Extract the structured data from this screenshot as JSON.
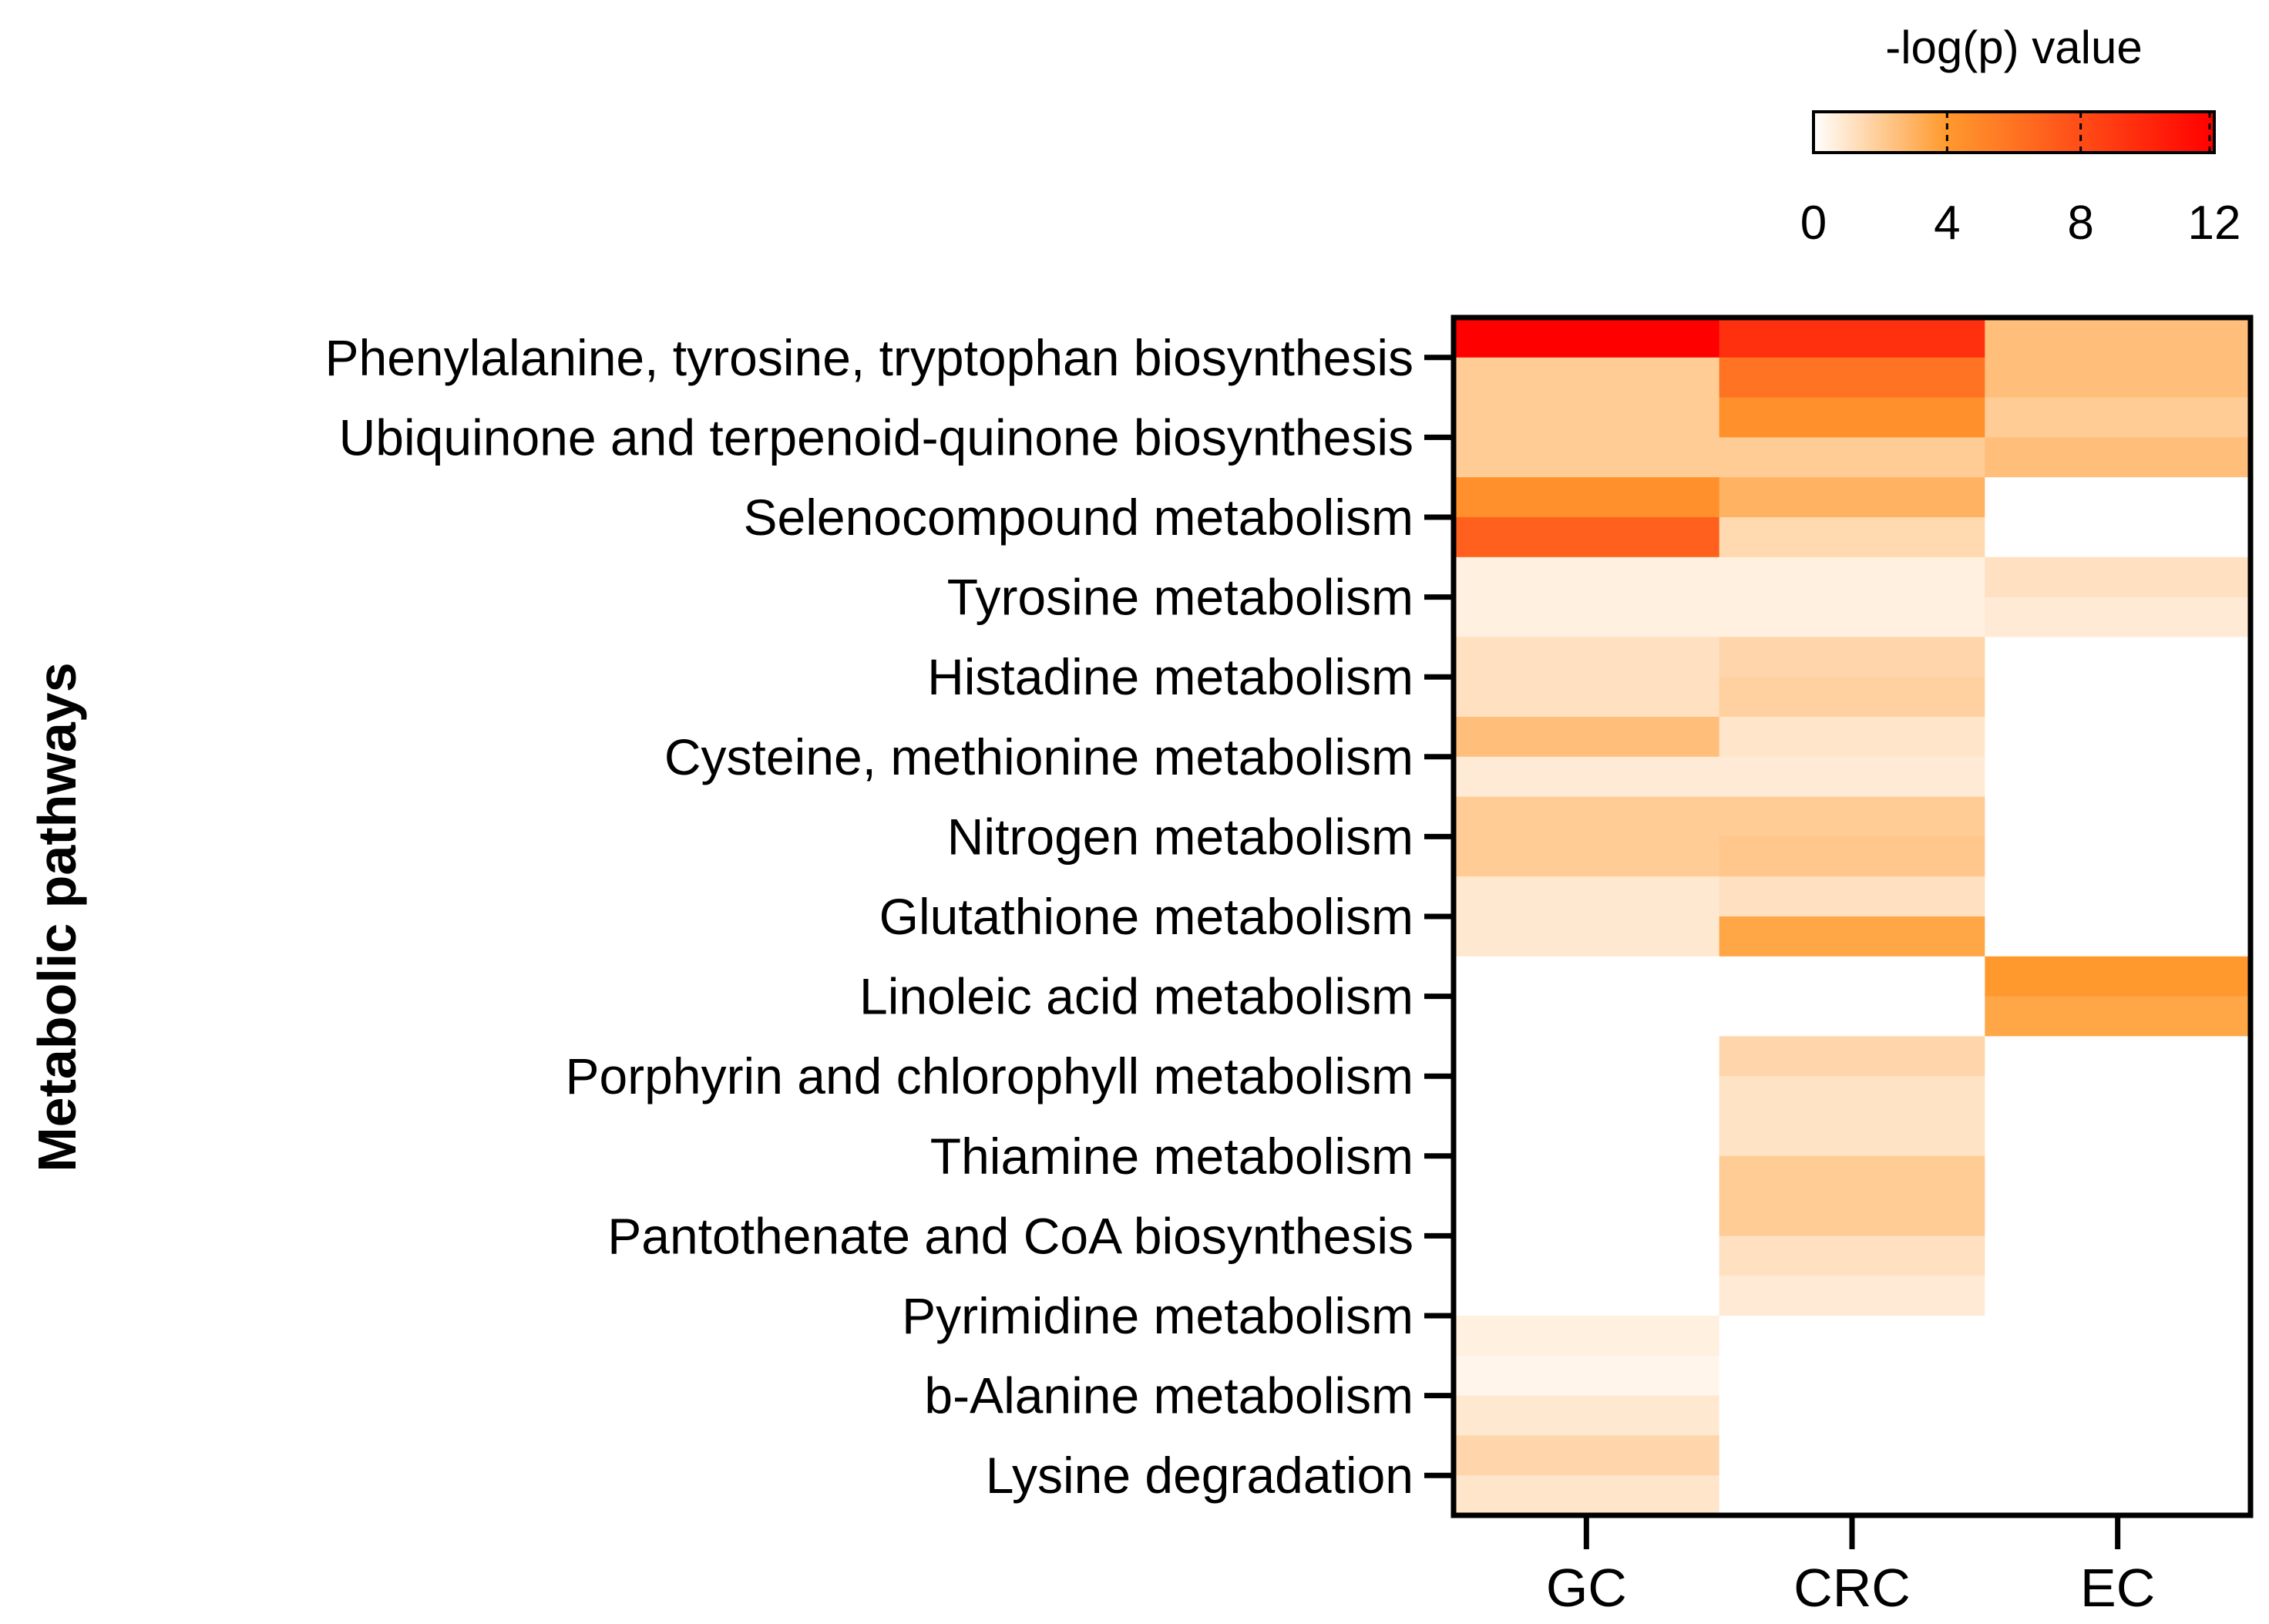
{
  "chart_data": {
    "type": "heatmap",
    "title": "",
    "ylabel": "Metabolic pathways",
    "xlabel": "",
    "columns": [
      "GC",
      "CRC",
      "EC"
    ],
    "row_labels": [
      "Phenylalanine, tyrosine, tryptophan biosynthesis",
      "Ubiquinone and terpenoid-quinone biosynthesis",
      "Selenocompound metabolism",
      "Tyrosine metabolism",
      "Histadine metabolism",
      "Cysteine, methionine metabolism",
      "Nitrogen metabolism",
      "Glutathione metabolism",
      "Linoleic acid metabolism",
      "Porphyrin and chlorophyll metabolism",
      "Thiamine metabolism",
      "Pantothenate and CoA biosynthesis",
      "Pyrimidine metabolism",
      "b-Alanine metabolism",
      "Lysine degradation"
    ],
    "sub_rows": 30,
    "values": [
      [
        12.0,
        9.5,
        2.5
      ],
      [
        2.0,
        6.0,
        2.5
      ],
      [
        2.0,
        4.5,
        2.0
      ],
      [
        2.0,
        2.0,
        2.5
      ],
      [
        4.5,
        3.0,
        0
      ],
      [
        7.0,
        1.5,
        0
      ],
      [
        0.6,
        0.6,
        1.2
      ],
      [
        0.6,
        0.6,
        0.8
      ],
      [
        1.2,
        1.6,
        0
      ],
      [
        1.2,
        1.8,
        0
      ],
      [
        2.5,
        1.0,
        0
      ],
      [
        0.8,
        0.8,
        0
      ],
      [
        2.0,
        2.0,
        0
      ],
      [
        2.0,
        2.2,
        0
      ],
      [
        0.9,
        1.2,
        0
      ],
      [
        0.9,
        3.5,
        0
      ],
      [
        0,
        0,
        4.0
      ],
      [
        0,
        0,
        3.5
      ],
      [
        0,
        1.6,
        0
      ],
      [
        0,
        1.1,
        0
      ],
      [
        0,
        1.1,
        0
      ],
      [
        0,
        2.0,
        0
      ],
      [
        0,
        2.0,
        0
      ],
      [
        0,
        1.2,
        0
      ],
      [
        0,
        0.8,
        0
      ],
      [
        0.6,
        0,
        0
      ],
      [
        0.4,
        0,
        0
      ],
      [
        0.9,
        0,
        0
      ],
      [
        1.6,
        0,
        0
      ],
      [
        1.0,
        0,
        0
      ]
    ],
    "colorbar": {
      "title": "-log(p) value",
      "range": [
        0,
        12
      ],
      "ticks": [
        0,
        4,
        8,
        12
      ],
      "color_low": "#ffffff",
      "color_mid": "#ff9a2e",
      "color_high": "#ff0000"
    }
  }
}
